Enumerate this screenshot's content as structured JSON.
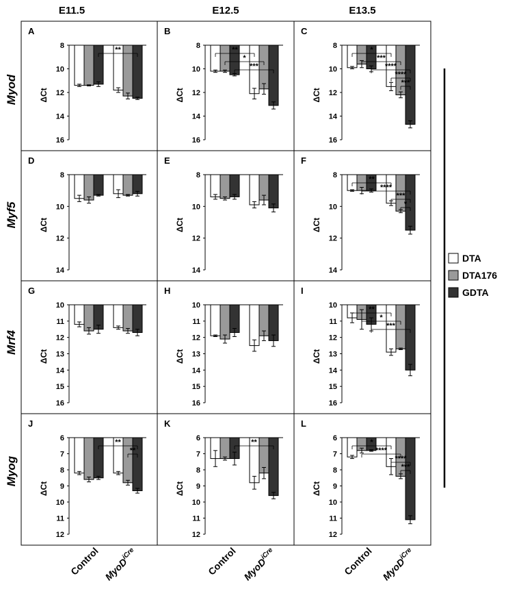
{
  "columns": [
    "E11.5",
    "E12.5",
    "E13.5"
  ],
  "rows": [
    "Myod",
    "Myf5",
    "Mrf4",
    "Myog"
  ],
  "groups": [
    "Control",
    "MyoD",
    "iCre"
  ],
  "legend": [
    {
      "name": "DTA",
      "color": "#ffffff"
    },
    {
      "name": "DTA176",
      "color": "#9a9a9a"
    },
    {
      "name": "GDTA",
      "color": "#333333"
    }
  ],
  "ylabel": "ΔCt",
  "chart_data": [
    {
      "type": "bar",
      "letter": "A",
      "row": 0,
      "col": 0,
      "ylabel": "ΔCt",
      "yticks": [
        8,
        10,
        12,
        14,
        16
      ],
      "ylim": [
        8,
        16
      ],
      "inverted": true,
      "categories": [
        "Control",
        "MyoD iCre"
      ],
      "series": [
        {
          "name": "DTA",
          "values": [
            11.4,
            11.8
          ],
          "err": [
            0.1,
            0.2
          ]
        },
        {
          "name": "DTA176",
          "values": [
            11.4,
            12.3
          ],
          "err": [
            0.05,
            0.25
          ]
        },
        {
          "name": "GDTA",
          "values": [
            11.3,
            12.5
          ],
          "err": [
            0.2,
            0.1
          ]
        }
      ],
      "sig": [
        {
          "label": "**",
          "from": [
            0,
            2
          ],
          "to": [
            1,
            2
          ],
          "level": 0
        }
      ]
    },
    {
      "type": "bar",
      "letter": "B",
      "row": 0,
      "col": 1,
      "ylabel": "ΔCt",
      "yticks": [
        8,
        10,
        12,
        14,
        16
      ],
      "ylim": [
        8,
        16
      ],
      "inverted": true,
      "categories": [
        "Control",
        "MyoD iCre"
      ],
      "series": [
        {
          "name": "DTA",
          "values": [
            10.2,
            12.1
          ],
          "err": [
            0.1,
            0.45
          ]
        },
        {
          "name": "DTA176",
          "values": [
            10.2,
            11.7
          ],
          "err": [
            0.1,
            0.45
          ]
        },
        {
          "name": "GDTA",
          "values": [
            10.5,
            13.1
          ],
          "err": [
            0.1,
            0.3
          ]
        }
      ],
      "sig": [
        {
          "label": "**",
          "from": [
            0,
            0
          ],
          "to": [
            1,
            0
          ],
          "level": 0
        },
        {
          "label": "*",
          "from": [
            0,
            1
          ],
          "to": [
            1,
            1
          ],
          "level": 1
        },
        {
          "label": "***",
          "from": [
            0,
            2
          ],
          "to": [
            1,
            2
          ],
          "level": 2
        }
      ]
    },
    {
      "type": "bar",
      "letter": "C",
      "row": 0,
      "col": 2,
      "ylabel": "ΔCt",
      "yticks": [
        8,
        10,
        12,
        14,
        16
      ],
      "ylim": [
        8,
        16
      ],
      "inverted": true,
      "categories": [
        "Control",
        "MyoD iCre"
      ],
      "series": [
        {
          "name": "DTA",
          "values": [
            9.9,
            11.5
          ],
          "err": [
            0.1,
            0.35
          ]
        },
        {
          "name": "DTA176",
          "values": [
            9.6,
            12.2
          ],
          "err": [
            0.3,
            0.25
          ]
        },
        {
          "name": "GDTA",
          "values": [
            10.0,
            14.7
          ],
          "err": [
            0.25,
            0.3
          ]
        }
      ],
      "sig": [
        {
          "label": "*",
          "from": [
            0,
            0
          ],
          "to": [
            1,
            0
          ],
          "level": 0
        },
        {
          "label": "***",
          "from": [
            0,
            1
          ],
          "to": [
            1,
            1
          ],
          "level": 1
        },
        {
          "label": "****",
          "from": [
            0,
            2
          ],
          "to": [
            1,
            2
          ],
          "level": 2
        },
        {
          "label": "****",
          "from": [
            1,
            0
          ],
          "to": [
            1,
            2
          ],
          "level": 3
        },
        {
          "label": "***",
          "from": [
            1,
            1
          ],
          "to": [
            1,
            2
          ],
          "level": 4
        }
      ]
    },
    {
      "type": "bar",
      "letter": "D",
      "row": 1,
      "col": 0,
      "ylabel": "ΔCt",
      "yticks": [
        8,
        10,
        12,
        14
      ],
      "ylim": [
        8,
        14
      ],
      "inverted": true,
      "categories": [
        "Control",
        "MyoD iCre"
      ],
      "series": [
        {
          "name": "DTA",
          "values": [
            9.5,
            9.2
          ],
          "err": [
            0.2,
            0.25
          ]
        },
        {
          "name": "DTA176",
          "values": [
            9.6,
            9.3
          ],
          "err": [
            0.2,
            0.05
          ]
        },
        {
          "name": "GDTA",
          "values": [
            9.3,
            9.2
          ],
          "err": [
            0.05,
            0.15
          ]
        }
      ],
      "sig": []
    },
    {
      "type": "bar",
      "letter": "E",
      "row": 1,
      "col": 1,
      "ylabel": "ΔCt",
      "yticks": [
        8,
        10,
        12,
        14
      ],
      "ylim": [
        8,
        14
      ],
      "inverted": true,
      "categories": [
        "Control",
        "MyoD iCre"
      ],
      "series": [
        {
          "name": "DTA",
          "values": [
            9.4,
            9.9
          ],
          "err": [
            0.15,
            0.2
          ]
        },
        {
          "name": "DTA176",
          "values": [
            9.5,
            9.6
          ],
          "err": [
            0.1,
            0.3
          ]
        },
        {
          "name": "GDTA",
          "values": [
            9.4,
            10.1
          ],
          "err": [
            0.15,
            0.25
          ]
        }
      ],
      "sig": []
    },
    {
      "type": "bar",
      "letter": "F",
      "row": 1,
      "col": 2,
      "ylabel": "ΔCt",
      "yticks": [
        8,
        10,
        12,
        14
      ],
      "ylim": [
        8,
        14
      ],
      "inverted": true,
      "categories": [
        "Control",
        "MyoD iCre"
      ],
      "series": [
        {
          "name": "DTA",
          "values": [
            9.0,
            9.8
          ],
          "err": [
            0.05,
            0.15
          ]
        },
        {
          "name": "DTA176",
          "values": [
            9.0,
            10.3
          ],
          "err": [
            0.2,
            0.1
          ]
        },
        {
          "name": "GDTA",
          "values": [
            9.0,
            11.5
          ],
          "err": [
            0.1,
            0.25
          ]
        }
      ],
      "sig": [
        {
          "label": "**",
          "from": [
            0,
            0
          ],
          "to": [
            1,
            0
          ],
          "level": 0
        },
        {
          "label": "****",
          "from": [
            0,
            1
          ],
          "to": [
            1,
            2
          ],
          "level": 1
        },
        {
          "label": "***",
          "from": [
            1,
            0
          ],
          "to": [
            1,
            2
          ],
          "level": 2
        },
        {
          "label": "*",
          "from": [
            1,
            1
          ],
          "to": [
            1,
            2
          ],
          "level": 3
        }
      ]
    },
    {
      "type": "bar",
      "letter": "G",
      "row": 2,
      "col": 0,
      "ylabel": "ΔCt",
      "yticks": [
        10,
        11,
        12,
        13,
        14,
        15,
        16
      ],
      "ylim": [
        10,
        16
      ],
      "inverted": true,
      "categories": [
        "Control",
        "MyoD iCre"
      ],
      "series": [
        {
          "name": "DTA",
          "values": [
            11.2,
            11.4
          ],
          "err": [
            0.15,
            0.1
          ]
        },
        {
          "name": "DTA176",
          "values": [
            11.6,
            11.6
          ],
          "err": [
            0.2,
            0.15
          ]
        },
        {
          "name": "GDTA",
          "values": [
            11.5,
            11.7
          ],
          "err": [
            0.25,
            0.2
          ]
        }
      ],
      "sig": []
    },
    {
      "type": "bar",
      "letter": "H",
      "row": 2,
      "col": 1,
      "ylabel": "ΔCt",
      "yticks": [
        10,
        11,
        12,
        13,
        14,
        15,
        16
      ],
      "ylim": [
        10,
        16
      ],
      "inverted": true,
      "categories": [
        "Control",
        "MyoD iCre"
      ],
      "series": [
        {
          "name": "DTA",
          "values": [
            11.9,
            12.5
          ],
          "err": [
            0.05,
            0.35
          ]
        },
        {
          "name": "DTA176",
          "values": [
            12.1,
            11.9
          ],
          "err": [
            0.25,
            0.3
          ]
        },
        {
          "name": "GDTA",
          "values": [
            11.7,
            12.2
          ],
          "err": [
            0.25,
            0.35
          ]
        }
      ],
      "sig": []
    },
    {
      "type": "bar",
      "letter": "I",
      "row": 2,
      "col": 2,
      "ylabel": "ΔCt",
      "yticks": [
        10,
        11,
        12,
        13,
        14,
        15,
        16
      ],
      "ylim": [
        10,
        16
      ],
      "inverted": true,
      "categories": [
        "Control",
        "MyoD iCre"
      ],
      "series": [
        {
          "name": "DTA",
          "values": [
            10.8,
            12.9
          ],
          "err": [
            0.3,
            0.2
          ]
        },
        {
          "name": "DTA176",
          "values": [
            10.9,
            12.7
          ],
          "err": [
            0.6,
            0.05
          ]
        },
        {
          "name": "GDTA",
          "values": [
            11.2,
            14.0
          ],
          "err": [
            0.4,
            0.35
          ]
        }
      ],
      "sig": [
        {
          "label": "**",
          "from": [
            0,
            0
          ],
          "to": [
            1,
            0
          ],
          "level": 0
        },
        {
          "label": "*",
          "from": [
            0,
            1
          ],
          "to": [
            1,
            1
          ],
          "level": 1
        },
        {
          "label": "***",
          "from": [
            0,
            2
          ],
          "to": [
            1,
            2
          ],
          "level": 2
        }
      ]
    },
    {
      "type": "bar",
      "letter": "J",
      "row": 3,
      "col": 0,
      "ylabel": "ΔCt",
      "yticks": [
        6,
        7,
        8,
        9,
        10,
        11,
        12
      ],
      "ylim": [
        6,
        12
      ],
      "inverted": true,
      "categories": [
        "Control",
        "MyoD iCre"
      ],
      "series": [
        {
          "name": "DTA",
          "values": [
            8.2,
            8.2
          ],
          "err": [
            0.1,
            0.1
          ]
        },
        {
          "name": "DTA176",
          "values": [
            8.6,
            8.8
          ],
          "err": [
            0.15,
            0.15
          ]
        },
        {
          "name": "GDTA",
          "values": [
            8.5,
            9.3
          ],
          "err": [
            0.1,
            0.15
          ]
        }
      ],
      "sig": [
        {
          "label": "**",
          "from": [
            0,
            2
          ],
          "to": [
            1,
            2
          ],
          "level": 0
        },
        {
          "label": "**",
          "from": [
            1,
            1
          ],
          "to": [
            1,
            2
          ],
          "level": 1
        }
      ]
    },
    {
      "type": "bar",
      "letter": "K",
      "row": 3,
      "col": 1,
      "ylabel": "ΔCt",
      "yticks": [
        6,
        7,
        8,
        9,
        10,
        11,
        12
      ],
      "ylim": [
        6,
        12
      ],
      "inverted": true,
      "categories": [
        "Control",
        "MyoD iCre"
      ],
      "series": [
        {
          "name": "DTA",
          "values": [
            7.3,
            8.8
          ],
          "err": [
            0.5,
            0.4
          ]
        },
        {
          "name": "DTA176",
          "values": [
            7.3,
            8.2
          ],
          "err": [
            0.1,
            0.35
          ]
        },
        {
          "name": "GDTA",
          "values": [
            7.3,
            9.6
          ],
          "err": [
            0.4,
            0.2
          ]
        }
      ],
      "sig": [
        {
          "label": "**",
          "from": [
            0,
            2
          ],
          "to": [
            1,
            2
          ],
          "level": 0
        }
      ]
    },
    {
      "type": "bar",
      "letter": "L",
      "row": 3,
      "col": 2,
      "ylabel": "ΔCt",
      "yticks": [
        6,
        7,
        8,
        9,
        10,
        11,
        12
      ],
      "ylim": [
        6,
        12
      ],
      "inverted": true,
      "categories": [
        "Control",
        "MyoD iCre"
      ],
      "series": [
        {
          "name": "DTA",
          "values": [
            7.2,
            7.8
          ],
          "err": [
            0.1,
            0.5
          ]
        },
        {
          "name": "DTA176",
          "values": [
            6.8,
            8.4
          ],
          "err": [
            0.15,
            0.15
          ]
        },
        {
          "name": "GDTA",
          "values": [
            6.8,
            11.1
          ],
          "err": [
            0.05,
            0.25
          ]
        }
      ],
      "sig": [
        {
          "label": "*",
          "from": [
            0,
            0
          ],
          "to": [
            1,
            0
          ],
          "level": 0
        },
        {
          "label": "****",
          "from": [
            0,
            1
          ],
          "to": [
            1,
            1
          ],
          "level": 1
        },
        {
          "label": "****",
          "from": [
            1,
            0
          ],
          "to": [
            1,
            2
          ],
          "level": 2
        },
        {
          "label": "***",
          "from": [
            1,
            1
          ],
          "to": [
            1,
            2
          ],
          "level": 3
        }
      ]
    }
  ]
}
